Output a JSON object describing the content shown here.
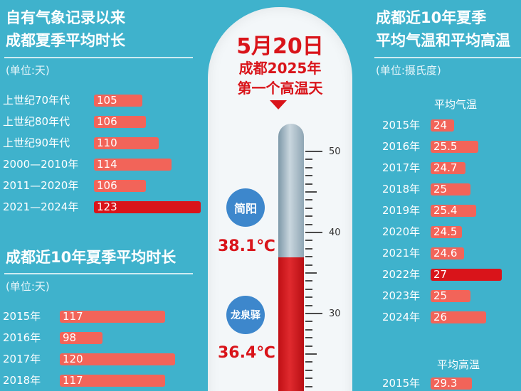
{
  "left": {
    "title1_line1": "自有气象记录以来",
    "title1_line2": "成都夏季平均时长",
    "unit1": "(单位:天)",
    "decades": [
      {
        "label": "上世纪70年代",
        "value": 105
      },
      {
        "label": "上世纪80年代",
        "value": 106
      },
      {
        "label": "上世纪90年代",
        "value": 110
      },
      {
        "label": "2000—2010年",
        "value": 114
      },
      {
        "label": "2011—2020年",
        "value": 106
      },
      {
        "label": "2021—2024年",
        "value": 123,
        "highlight": true
      }
    ],
    "title2": "成都近10年夏季平均时长",
    "unit2": "(单位:天)",
    "years": [
      {
        "label": "2015年",
        "value": 117
      },
      {
        "label": "2016年",
        "value": 98
      },
      {
        "label": "2017年",
        "value": 120
      },
      {
        "label": "2018年",
        "value": 117
      }
    ]
  },
  "center": {
    "headline_date": "5月20日",
    "headline_line2": "成都2025年",
    "headline_line3": "第一个高温天",
    "scale_labels": [
      "50",
      "40",
      "30"
    ],
    "station1": "简阳",
    "temp1": "38.1℃",
    "station2": "龙泉驿",
    "temp2": "36.4℃"
  },
  "right": {
    "title_line1": "成都近10年夏季",
    "title_line2": "平均气温和平均高温",
    "unit": "(单位:摄氏度)",
    "sub1": "平均气温",
    "avg_temp": [
      {
        "label": "2015年",
        "value": 24
      },
      {
        "label": "2016年",
        "value": 25.5
      },
      {
        "label": "2017年",
        "value": 24.7
      },
      {
        "label": "2018年",
        "value": 25
      },
      {
        "label": "2019年",
        "value": 25.4
      },
      {
        "label": "2020年",
        "value": 24.5
      },
      {
        "label": "2021年",
        "value": 24.6
      },
      {
        "label": "2022年",
        "value": 27,
        "highlight": true
      },
      {
        "label": "2023年",
        "value": 25
      },
      {
        "label": "2024年",
        "value": 26
      }
    ],
    "sub2": "平均高温",
    "avg_high": [
      {
        "label": "2015年",
        "value": 29.3
      }
    ]
  },
  "chart_data": [
    {
      "type": "bar",
      "title": "自有气象记录以来成都夏季平均时长",
      "unit": "(单位:天)",
      "categories": [
        "上世纪70年代",
        "上世纪80年代",
        "上世纪90年代",
        "2000—2010年",
        "2011—2020年",
        "2021—2024年"
      ],
      "values": [
        105,
        106,
        110,
        114,
        106,
        123
      ]
    },
    {
      "type": "bar",
      "title": "成都近10年夏季平均时长",
      "unit": "(单位:天)",
      "categories": [
        "2015年",
        "2016年",
        "2017年",
        "2018年"
      ],
      "values": [
        117,
        98,
        120,
        117
      ]
    },
    {
      "type": "bar",
      "title": "成都近10年夏季平均气温和平均高温",
      "unit": "(单位:摄氏度)",
      "series": [
        {
          "name": "平均气温",
          "categories": [
            "2015年",
            "2016年",
            "2017年",
            "2018年",
            "2019年",
            "2020年",
            "2021年",
            "2022年",
            "2023年",
            "2024年"
          ],
          "values": [
            24,
            25.5,
            24.7,
            25,
            25.4,
            24.5,
            24.6,
            27,
            25,
            26
          ]
        },
        {
          "name": "平均高温",
          "categories": [
            "2015年"
          ],
          "values": [
            29.3
          ]
        }
      ]
    }
  ]
}
